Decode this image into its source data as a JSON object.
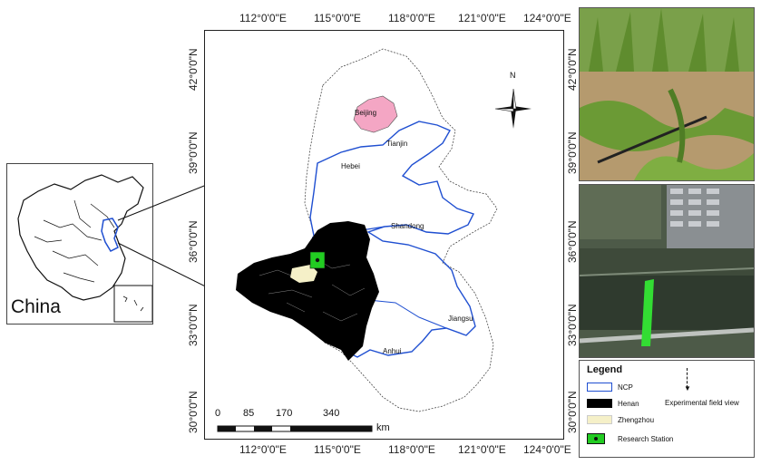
{
  "top_axis": [
    "112°0'0\"E",
    "115°0'0\"E",
    "118°0'0\"E",
    "121°0'0\"E",
    "124°0'0\"E"
  ],
  "bottom_axis": [
    "112°0'0\"E",
    "115°0'0\"E",
    "118°0'0\"E",
    "121°0'0\"E",
    "124°0'0\"E"
  ],
  "left_axis": [
    "42°0'0\"N",
    "39°0'0\"N",
    "36°0'0\"N",
    "33°0'0\"N",
    "30°0'0\"N"
  ],
  "right_axis": [
    "42°0'0\"N",
    "39°0'0\"N",
    "36°0'0\"N",
    "33°0'0\"N",
    "30°0'0\"N"
  ],
  "inset": {
    "label": "China"
  },
  "map_labels": {
    "beijing": "Beijing",
    "tianjin": "Tianjin",
    "hebei": "Hebei",
    "shandong": "Shandong",
    "jiangsu": "Jiangsu",
    "anhui": "Anhui"
  },
  "north_arrow": "N",
  "scale_bar": {
    "ticks": [
      "0",
      "85",
      "170",
      "340"
    ],
    "unit": "km"
  },
  "legend": {
    "title": "Legend",
    "items": [
      {
        "label": "NCP",
        "symbol": "blue-outline"
      },
      {
        "label": "Henan",
        "symbol": "black-fill"
      },
      {
        "label": "Zhengzhou",
        "symbol": "cream-fill"
      },
      {
        "label": "Research Station",
        "symbol": "green-dot"
      }
    ],
    "field_view_label": "Experimental field view"
  },
  "colors": {
    "ncp_boundary": "#1f4fd1",
    "henan": "#000000",
    "zhengzhou": "#f5f0c8",
    "beijing": "#f4a6c4",
    "station": "#22cc22",
    "field_strip": "#33dd33"
  }
}
